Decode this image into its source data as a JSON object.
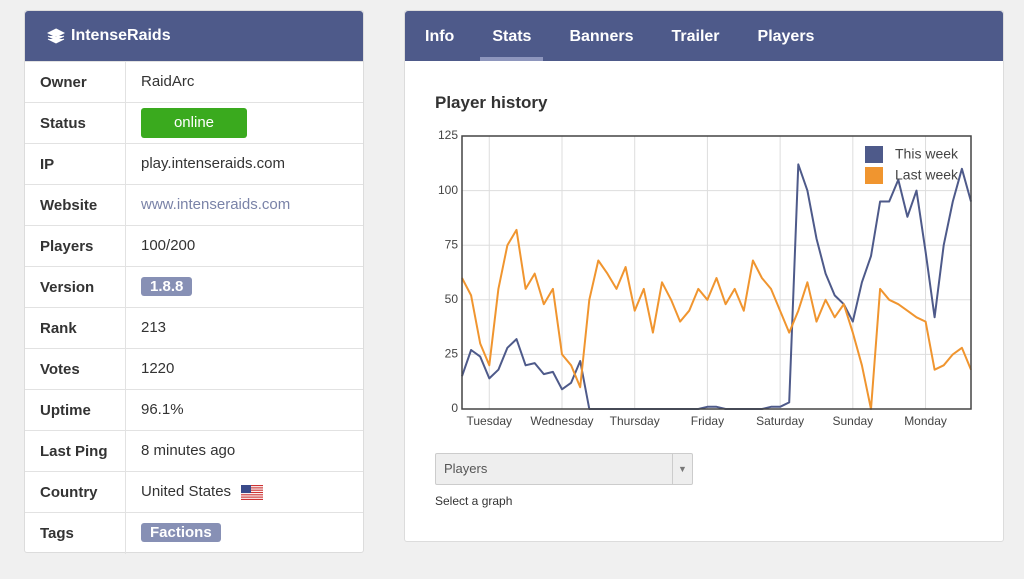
{
  "sidebar": {
    "title": "IntenseRaids",
    "rows": [
      {
        "label": "Owner",
        "value": "RaidArc"
      },
      {
        "label": "Status",
        "badge": "online"
      },
      {
        "label": "IP",
        "value": "play.intenseraids.com"
      },
      {
        "label": "Website",
        "link": "www.intenseraids.com"
      },
      {
        "label": "Players",
        "value": "100/200"
      },
      {
        "label": "Version",
        "tag": "1.8.8"
      },
      {
        "label": "Rank",
        "value": "213"
      },
      {
        "label": "Votes",
        "value": "1220"
      },
      {
        "label": "Uptime",
        "value": "96.1%"
      },
      {
        "label": "Last Ping",
        "value": "8 minutes ago"
      },
      {
        "label": "Country",
        "value": "United States"
      },
      {
        "label": "Tags",
        "tag": "Factions"
      }
    ]
  },
  "tabs": [
    "Info",
    "Stats",
    "Banners",
    "Trailer",
    "Players"
  ],
  "chart_data": {
    "type": "line",
    "title": "Player history",
    "x": [
      0,
      3,
      6,
      9,
      12,
      15,
      18,
      21,
      24,
      27,
      30,
      33,
      36,
      39,
      42,
      45,
      48,
      51,
      54,
      57,
      60,
      63,
      66,
      69,
      72,
      75,
      78,
      81,
      84,
      87,
      90,
      93,
      96,
      99,
      102,
      105,
      108,
      111,
      114,
      117,
      120,
      123,
      126,
      129,
      132,
      135,
      138,
      141,
      144,
      147,
      150,
      153,
      156,
      159,
      162,
      165,
      168
    ],
    "xlim": [
      0,
      168
    ],
    "xticks": [
      {
        "value": 9,
        "label": "Tuesday"
      },
      {
        "value": 33,
        "label": "Wednesday"
      },
      {
        "value": 57,
        "label": "Thursday"
      },
      {
        "value": 81,
        "label": "Friday"
      },
      {
        "value": 105,
        "label": "Saturday"
      },
      {
        "value": 129,
        "label": "Sunday"
      },
      {
        "value": 153,
        "label": "Monday"
      }
    ],
    "ylim": [
      0,
      125
    ],
    "yticks": [
      0,
      25,
      50,
      75,
      100,
      125
    ],
    "grid": true,
    "legend": "upper right",
    "series": [
      {
        "name": "This week",
        "color": "#4e5a8a",
        "values": [
          15,
          27,
          24,
          14,
          18,
          28,
          32,
          20,
          21,
          16,
          17,
          9,
          12,
          22,
          0,
          0,
          0,
          0,
          0,
          0,
          0,
          0,
          0,
          0,
          0,
          0,
          0,
          1,
          1,
          0,
          0,
          0,
          0,
          0,
          1,
          1,
          3,
          112,
          100,
          78,
          62,
          52,
          48,
          40,
          58,
          70,
          95,
          95,
          105,
          88,
          100,
          72,
          42,
          75,
          95,
          110,
          95
        ]
      },
      {
        "name": "Last week",
        "color": "#f0952f",
        "values": [
          60,
          52,
          30,
          20,
          55,
          75,
          82,
          55,
          62,
          48,
          55,
          25,
          20,
          10,
          50,
          68,
          62,
          55,
          65,
          45,
          55,
          35,
          58,
          50,
          40,
          45,
          55,
          50,
          60,
          48,
          55,
          45,
          68,
          60,
          55,
          45,
          35,
          45,
          58,
          40,
          50,
          42,
          48,
          35,
          20,
          0,
          55,
          50,
          48,
          45,
          42,
          40,
          18,
          20,
          25,
          28,
          18
        ]
      }
    ]
  },
  "select": {
    "value": "Players",
    "caption": "Select a graph"
  }
}
